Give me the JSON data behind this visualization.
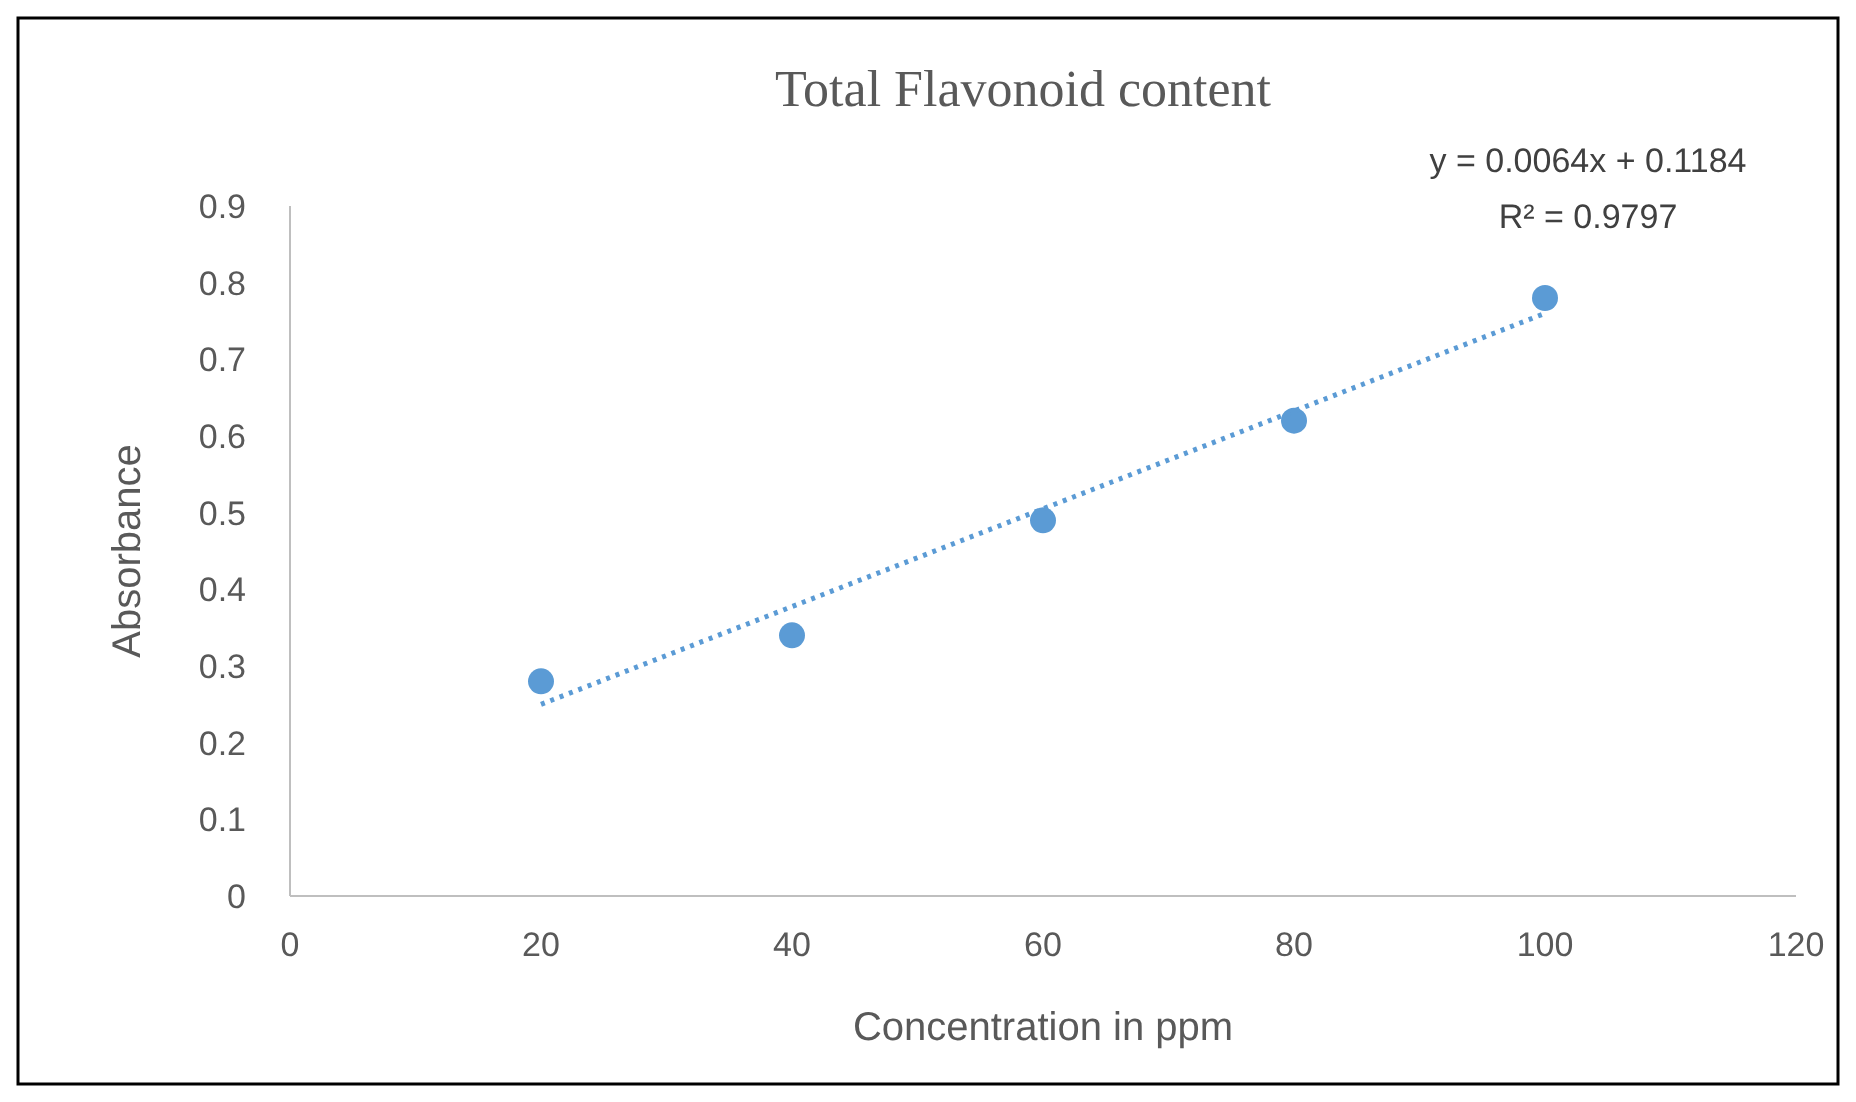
{
  "chart_data": {
    "type": "scatter",
    "title": "Total Flavonoid content",
    "xlabel": "Concentration in ppm",
    "ylabel": "Absorbance",
    "x": [
      20,
      40,
      60,
      80,
      100
    ],
    "series": [
      {
        "color": "#5b9bd5",
        "values": [
          0.28,
          0.34,
          0.49,
          0.62,
          0.78
        ],
        "marker": "circle"
      },
      {
        "type": "line",
        "color": "#5b9bd5",
        "x": [
          20,
          100
        ],
        "values": [
          0.25,
          0.76
        ],
        "line_style": "dotted"
      }
    ],
    "xlim": [
      0,
      120
    ],
    "xticks": [
      0,
      20,
      40,
      60,
      80,
      100,
      120
    ],
    "ylim": [
      0,
      0.9
    ],
    "yticks": [
      0,
      0.1,
      0.2,
      0.3,
      0.4,
      0.5,
      0.6,
      0.7,
      0.8,
      0.9
    ],
    "grid": false,
    "annotations": [
      "y = 0.0064x + 0.1184",
      "R² = 0.9797"
    ]
  }
}
